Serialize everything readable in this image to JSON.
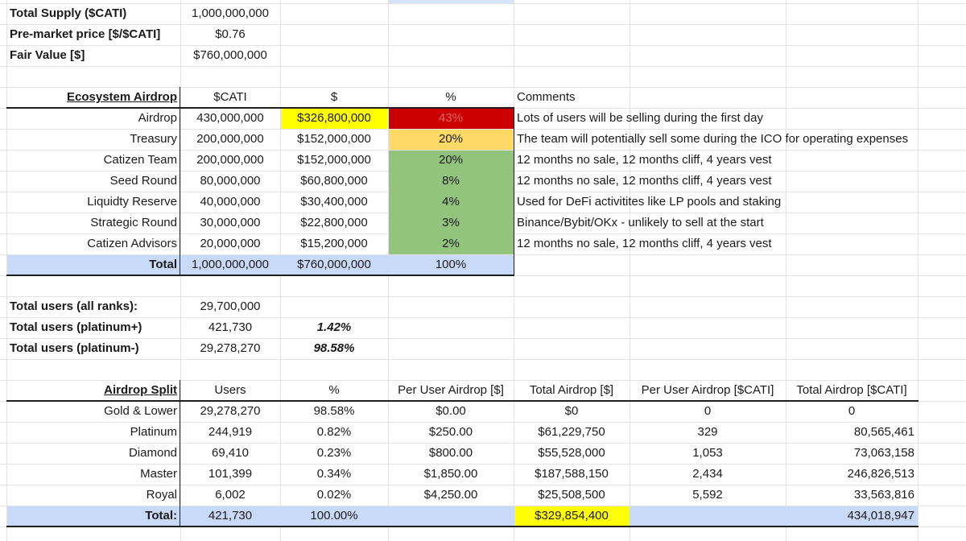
{
  "summary": {
    "total_supply_label": "Total Supply ($CATI)",
    "total_supply_value": "1,000,000,000",
    "premarket_label": "Pre-market price [$/$CATI]",
    "premarket_value": "$0.76",
    "fair_value_label": "Fair Value [$]",
    "fair_value_value": "$760,000,000"
  },
  "ecosystem": {
    "headers": {
      "name": "Ecosystem Airdrop",
      "cati": "$CATI",
      "usd": "$",
      "pct": "%",
      "comments": "Comments"
    },
    "rows": [
      {
        "name": "Airdrop",
        "cati": "430,000,000",
        "usd": "$326,800,000",
        "pct": "43%",
        "comment": "Lots of users will be selling during the first day"
      },
      {
        "name": "Treasury",
        "cati": "200,000,000",
        "usd": "$152,000,000",
        "pct": "20%",
        "comment": "The team will potentially sell some during the ICO for operating expenses"
      },
      {
        "name": "Catizen Team",
        "cati": "200,000,000",
        "usd": "$152,000,000",
        "pct": "20%",
        "comment": "12 months no sale, 12 months cliff, 4 years vest"
      },
      {
        "name": "Seed Round",
        "cati": "80,000,000",
        "usd": "$60,800,000",
        "pct": "8%",
        "comment": "12 months no sale, 12 months cliff, 4 years vest"
      },
      {
        "name": "Liquidty Reserve",
        "cati": "40,000,000",
        "usd": "$30,400,000",
        "pct": "4%",
        "comment": "Used for DeFi activitites like LP pools and staking"
      },
      {
        "name": "Strategic Round",
        "cati": "30,000,000",
        "usd": "$22,800,000",
        "pct": "3%",
        "comment": "Binance/Bybit/OKx - unlikely to sell at the start"
      },
      {
        "name": "Catizen Advisors",
        "cati": "20,000,000",
        "usd": "$15,200,000",
        "pct": "2%",
        "comment": "12 months no sale, 12 months cliff, 4 years vest"
      }
    ],
    "total": {
      "name": "Total",
      "cati": "1,000,000,000",
      "usd": "$760,000,000",
      "pct": "100%"
    }
  },
  "users": {
    "all_label": "Total users (all ranks):",
    "all_value": "29,700,000",
    "plat_plus_label": "Total users (platinum+)",
    "plat_plus_value": "421,730",
    "plat_plus_pct": "1.42%",
    "plat_minus_label": "Total users (platinum-)",
    "plat_minus_value": "29,278,270",
    "plat_minus_pct": "98.58%"
  },
  "split": {
    "headers": {
      "name": "Airdrop Split",
      "users": "Users",
      "pct": "%",
      "per_user_usd": "Per User Airdrop [$]",
      "total_usd": "Total Airdrop [$]",
      "per_user_cati": "Per User Airdrop [$CATI]",
      "total_cati": "Total Airdrop [$CATI]"
    },
    "rows": [
      {
        "name": "Gold & Lower",
        "users": "29,278,270",
        "pct": "98.58%",
        "per_user_usd": "$0.00",
        "total_usd": "$0",
        "per_user_cati": "0",
        "total_cati": "0"
      },
      {
        "name": "Platinum",
        "users": "244,919",
        "pct": "0.82%",
        "per_user_usd": "$250.00",
        "total_usd": "$61,229,750",
        "per_user_cati": "329",
        "total_cati": "80,565,461"
      },
      {
        "name": "Diamond",
        "users": "69,410",
        "pct": "0.23%",
        "per_user_usd": "$800.00",
        "total_usd": "$55,528,000",
        "per_user_cati": "1,053",
        "total_cati": "73,063,158"
      },
      {
        "name": "Master",
        "users": "101,399",
        "pct": "0.34%",
        "per_user_usd": "$1,850.00",
        "total_usd": "$187,588,150",
        "per_user_cati": "2,434",
        "total_cati": "246,826,513"
      },
      {
        "name": "Royal",
        "users": "6,002",
        "pct": "0.02%",
        "per_user_usd": "$4,250.00",
        "total_usd": "$25,508,500",
        "per_user_cati": "5,592",
        "total_cati": "33,563,816"
      }
    ],
    "total": {
      "name": "Total:",
      "users": "421,730",
      "pct": "100.00%",
      "total_usd": "$329,854,400",
      "total_cati": "434,018,947"
    }
  },
  "colors": {
    "header_blue": "#c9daf8",
    "highlight_yellow": "#ffff00",
    "pct_red": "#cc0000",
    "pct_orange": "#ffd966",
    "pct_green": "#93c47d"
  }
}
